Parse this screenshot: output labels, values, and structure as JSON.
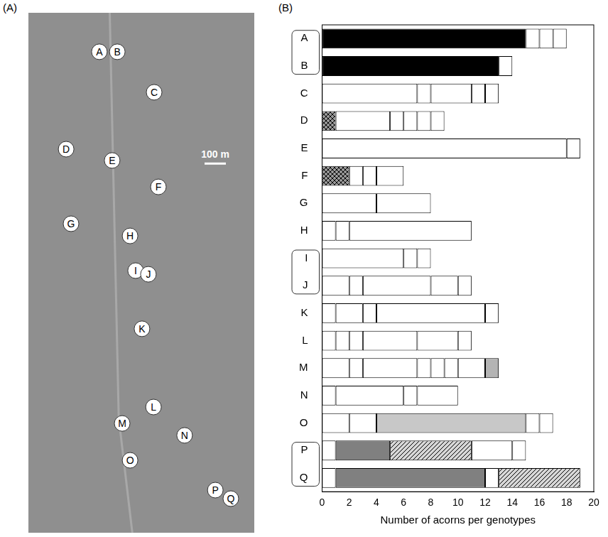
{
  "map": {
    "label": "(A)",
    "xlim": [
      0,
      1060
    ],
    "ylim": [
      0,
      2440
    ],
    "scale_bar": {
      "length": 100,
      "label": "100 m"
    },
    "sites": [
      {
        "label": "A",
        "x": 333,
        "y": 2257
      },
      {
        "label": "B",
        "x": 417,
        "y": 2257
      },
      {
        "label": "C",
        "x": 590,
        "y": 2067
      },
      {
        "label": "D",
        "x": 177,
        "y": 1800
      },
      {
        "label": "E",
        "x": 393,
        "y": 1747
      },
      {
        "label": "F",
        "x": 610,
        "y": 1623
      },
      {
        "label": "G",
        "x": 200,
        "y": 1450
      },
      {
        "label": "H",
        "x": 477,
        "y": 1393
      },
      {
        "label": "I",
        "x": 503,
        "y": 1230
      },
      {
        "label": "J",
        "x": 563,
        "y": 1213
      },
      {
        "label": "K",
        "x": 533,
        "y": 957
      },
      {
        "label": "L",
        "x": 587,
        "y": 590
      },
      {
        "label": "M",
        "x": 440,
        "y": 513
      },
      {
        "label": "N",
        "x": 733,
        "y": 457
      },
      {
        "label": "O",
        "x": 477,
        "y": 340
      },
      {
        "label": "P",
        "x": 877,
        "y": 200
      },
      {
        "label": "Q",
        "x": 950,
        "y": 160
      }
    ]
  },
  "chart_data": {
    "type": "bar",
    "panel_label": "(B)",
    "orientation": "horizontal",
    "stacked": true,
    "categories": [
      "A",
      "B",
      "C",
      "D",
      "E",
      "F",
      "G",
      "H",
      "I",
      "J",
      "K",
      "L",
      "M",
      "N",
      "O",
      "P",
      "Q"
    ],
    "values": [
      [
        15,
        1,
        1,
        1
      ],
      [
        13,
        1
      ],
      [
        7,
        1,
        3,
        1,
        1
      ],
      [
        1,
        4,
        1,
        1,
        1,
        1
      ],
      [
        18,
        1
      ],
      [
        2,
        1,
        1,
        2
      ],
      [
        4,
        4
      ],
      [
        1,
        1,
        9
      ],
      [
        6,
        1,
        1
      ],
      [
        2,
        1,
        5,
        2,
        1
      ],
      [
        1,
        2,
        1,
        8,
        1
      ],
      [
        1,
        1,
        1,
        4,
        3,
        1
      ],
      [
        2,
        1,
        4,
        1,
        1,
        1,
        2,
        1
      ],
      [
        1,
        5,
        1,
        3
      ],
      [
        2,
        2,
        11,
        1,
        1
      ],
      [
        1,
        4,
        6,
        3,
        1
      ],
      [
        1,
        11,
        1,
        6
      ]
    ],
    "colors": [
      [
        "#000000",
        "#ffffff",
        "#ffffff",
        "#ffffff"
      ],
      [
        "#000000",
        "#ffffff"
      ],
      [
        "#ffffff",
        "#ffffff",
        "#ffffff",
        "#ffffff",
        "#ffffff"
      ],
      [
        "crosshatch",
        "#ffffff",
        "#ffffff",
        "#ffffff",
        "#ffffff",
        "#ffffff"
      ],
      [
        "#ffffff",
        "#ffffff"
      ],
      [
        "crosshatch",
        "#ffffff",
        "#ffffff",
        "#ffffff"
      ],
      [
        "#ffffff",
        "#ffffff"
      ],
      [
        "#ffffff",
        "#ffffff",
        "#ffffff"
      ],
      [
        "#ffffff",
        "#ffffff",
        "#ffffff"
      ],
      [
        "#ffffff",
        "#ffffff",
        "#ffffff",
        "#ffffff",
        "#ffffff"
      ],
      [
        "#ffffff",
        "#ffffff",
        "#ffffff",
        "#ffffff",
        "#ffffff"
      ],
      [
        "#ffffff",
        "#ffffff",
        "#ffffff",
        "#ffffff",
        "#ffffff",
        "#ffffff"
      ],
      [
        "#ffffff",
        "#ffffff",
        "#ffffff",
        "#ffffff",
        "#ffffff",
        "#ffffff",
        "#ffffff",
        "#b4b4b4"
      ],
      [
        "#ffffff",
        "#ffffff",
        "#ffffff",
        "#ffffff"
      ],
      [
        "#ffffff",
        "#ffffff",
        "#c8c8c8",
        "#ffffff",
        "#ffffff"
      ],
      [
        "#ffffff",
        "#808080",
        "hatch",
        "#ffffff",
        "#ffffff"
      ],
      [
        "#ffffff",
        "#808080",
        "#ffffff",
        "hatch"
      ]
    ],
    "label_groups": [
      [
        "A",
        "B"
      ],
      [
        "I",
        "J"
      ],
      [
        "P",
        "Q"
      ]
    ],
    "xlabel": "Number of acorns per genotypes",
    "xlim": [
      0,
      20
    ],
    "xticks": [
      0,
      2,
      4,
      6,
      8,
      10,
      12,
      14,
      16,
      18,
      20
    ],
    "grid": false
  }
}
